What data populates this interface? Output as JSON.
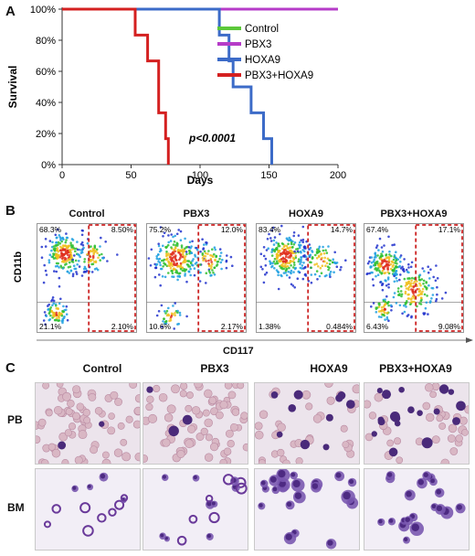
{
  "panels": {
    "a": {
      "letter": "A",
      "pvalue": "p<0.0001",
      "chart_data": {
        "type": "line",
        "subtype": "kaplan-meier survival curve",
        "xlabel": "Days",
        "ylabel": "Survival",
        "xlim": [
          0,
          200
        ],
        "ylim": [
          0,
          100
        ],
        "x_ticks": [
          "0",
          "50",
          "100",
          "150",
          "200"
        ],
        "y_ticks": [
          "0%",
          "20%",
          "40%",
          "60%",
          "80%",
          "100%"
        ],
        "legend_position": "top-right",
        "grid": false,
        "series": [
          {
            "name": "Control",
            "color": "#5cc83a",
            "points": [
              [
                0,
                100
              ],
              [
                200,
                100
              ]
            ]
          },
          {
            "name": "PBX3",
            "color": "#b63cc8",
            "points": [
              [
                0,
                100
              ],
              [
                200,
                100
              ]
            ]
          },
          {
            "name": "HOXA9",
            "color": "#3c6bc8",
            "points": [
              [
                0,
                100
              ],
              [
                114,
                100
              ],
              [
                114,
                83.3
              ],
              [
                121,
                83.3
              ],
              [
                121,
                66.7
              ],
              [
                124,
                66.7
              ],
              [
                124,
                50
              ],
              [
                137,
                50
              ],
              [
                137,
                33.3
              ],
              [
                146,
                33.3
              ],
              [
                146,
                16.7
              ],
              [
                152,
                16.7
              ],
              [
                152,
                0
              ]
            ]
          },
          {
            "name": "PBX3+HOXA9",
            "color": "#d42020",
            "points": [
              [
                0,
                100
              ],
              [
                53,
                100
              ],
              [
                53,
                83.3
              ],
              [
                62,
                83.3
              ],
              [
                62,
                66.7
              ],
              [
                70,
                66.7
              ],
              [
                70,
                33.3
              ],
              [
                75,
                33.3
              ],
              [
                75,
                16.7
              ],
              [
                77,
                16.7
              ],
              [
                77,
                0
              ]
            ]
          }
        ]
      }
    },
    "b": {
      "letter": "B",
      "y_axis_label": "CD11b",
      "x_axis_label": "CD117",
      "plots": [
        {
          "title": "Control",
          "tl": "68.3%",
          "tr": "8.50%",
          "bl": "21.1%",
          "br": "2.10%"
        },
        {
          "title": "PBX3",
          "tl": "75.2%",
          "tr": "12.0%",
          "bl": "10.6%",
          "br": "2.17%"
        },
        {
          "title": "HOXA9",
          "tl": "83.4%",
          "tr": "14.7%",
          "bl": "1.38%",
          "br": "0.484%"
        },
        {
          "title": "PBX3+HOXA9",
          "tl": "67.4%",
          "tr": "17.1%",
          "bl": "6.43%",
          "br": "9.08%"
        }
      ]
    },
    "c": {
      "letter": "C",
      "columns": [
        "Control",
        "PBX3",
        "HOXA9",
        "PBX3+HOXA9"
      ],
      "rows": [
        "PB",
        "BM"
      ]
    }
  }
}
